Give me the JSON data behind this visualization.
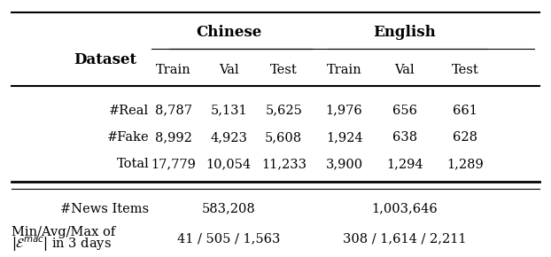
{
  "figsize": [
    6.22,
    2.9
  ],
  "dpi": 100,
  "bg_color": "#ffffff",
  "sub_header": [
    "Train",
    "Val",
    "Test",
    "Train",
    "Val",
    "Test"
  ],
  "rows": [
    [
      "#Real",
      "8,787",
      "5,131",
      "5,625",
      "1,976",
      "656",
      "661"
    ],
    [
      "#Fake",
      "8,992",
      "4,923",
      "5,608",
      "1,924",
      "638",
      "628"
    ],
    [
      "Total",
      "17,779",
      "10,054",
      "11,233",
      "3,900",
      "1,294",
      "1,289"
    ]
  ],
  "font_size": 10.5,
  "header_font_size": 12
}
